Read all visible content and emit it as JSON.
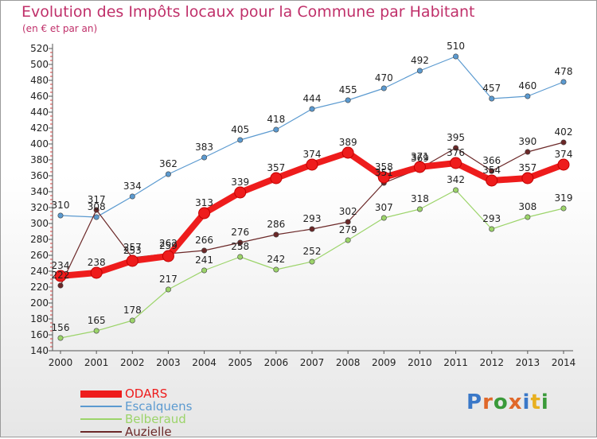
{
  "title": "Evolution des Impôts locaux pour la Commune par Habitant",
  "subtitle": "(en € et par an)",
  "logo": {
    "text": "Proxiti",
    "letters": [
      "P",
      "r",
      "o",
      "x",
      "i",
      "t",
      "i"
    ],
    "colors": [
      "#3a78c8",
      "#e0682a",
      "#3a9a3a",
      "#e0682a",
      "#3a78c8",
      "#e8b020",
      "#3a9a3a"
    ]
  },
  "chart_data": {
    "type": "line",
    "title": "Evolution des Impôts locaux pour la Commune par Habitant",
    "subtitle": "(en € et par an)",
    "x": [
      "2000",
      "2001",
      "2002",
      "2003",
      "2004",
      "2005",
      "2006",
      "2007",
      "2008",
      "2009",
      "2010",
      "2011",
      "2012",
      "2013",
      "2014"
    ],
    "ylim": [
      140,
      520
    ],
    "yticks": [
      140,
      160,
      180,
      200,
      220,
      240,
      260,
      280,
      300,
      320,
      340,
      360,
      380,
      400,
      420,
      440,
      460,
      480,
      500,
      520
    ],
    "grid": false,
    "legend_position": "bottom-left",
    "series": [
      {
        "name": "Escalquens",
        "color": "#5b9ad0",
        "values": [
          310,
          308,
          334,
          362,
          383,
          405,
          418,
          444,
          455,
          470,
          492,
          510,
          457,
          460,
          478
        ]
      },
      {
        "name": "Belberaud",
        "color": "#9cd46a",
        "values": [
          156,
          165,
          178,
          217,
          241,
          258,
          242,
          252,
          279,
          307,
          318,
          342,
          293,
          308,
          319
        ]
      },
      {
        "name": "Auzielle",
        "color": "#6b2828",
        "values": [
          222,
          317,
          257,
          262,
          266,
          276,
          286,
          293,
          302,
          351,
          369,
          395,
          366,
          390,
          402
        ]
      },
      {
        "name": "ODARS",
        "color": "#ee1c1c",
        "values": [
          234,
          238,
          253,
          259,
          313,
          339,
          357,
          374,
          389,
          358,
          371,
          376,
          354,
          357,
          374
        ]
      }
    ],
    "legend_order": [
      "ODARS",
      "Escalquens",
      "Belberaud",
      "Auzielle"
    ]
  }
}
